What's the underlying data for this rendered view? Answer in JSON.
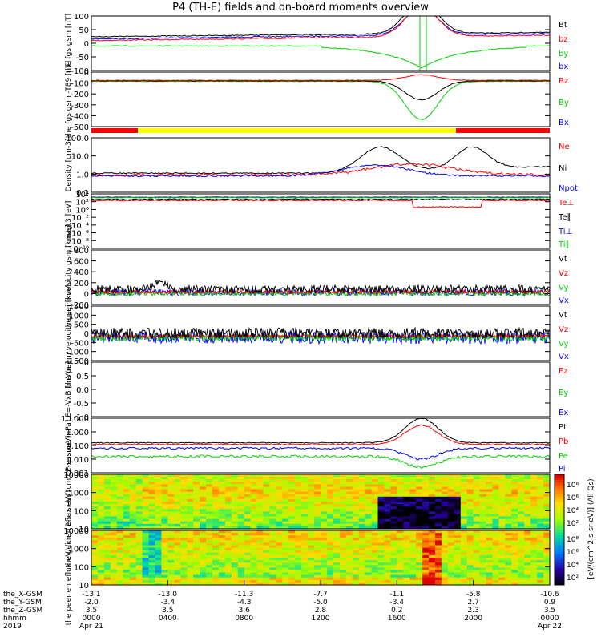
{
  "title": "P4 (TH-E) fields and on-board moments overview",
  "colors": {
    "black": "#000000",
    "red": "#ff0000",
    "green": "#00d000",
    "blue": "#0000ff",
    "yellow": "#ffff00",
    "orange": "#ff8c00"
  },
  "panels": [
    {
      "ylabel": "the fgs gsm [nT]",
      "ticks": [
        "100",
        "50",
        "0",
        "-50",
        "-100"
      ],
      "legend": [
        {
          "text": "Bt",
          "color": "black"
        },
        {
          "text": "bz",
          "color": "red"
        },
        {
          "text": "by",
          "color": "green"
        },
        {
          "text": "bx",
          "color": "blue"
        }
      ]
    },
    {
      "ylabel": "the fgs gsm -T89 [nT]",
      "ticks": [
        "0",
        "-100",
        "-200",
        "-300",
        "-400",
        "-500"
      ],
      "legend": [
        {
          "text": "Bz",
          "color": "red"
        },
        {
          "text": "By",
          "color": "green"
        },
        {
          "text": "Bx",
          "color": "blue"
        }
      ]
    },
    {
      "ylabel": "Density [cm-3]",
      "ticks": [
        "100.0",
        "10.0",
        "1.0",
        "0.1"
      ],
      "legend": [
        {
          "text": "Ne",
          "color": "red"
        },
        {
          "text": "Ni",
          "color": "black"
        },
        {
          "text": "Npot",
          "color": "blue"
        }
      ]
    },
    {
      "ylabel": "magt3 [eV]",
      "ticks": [
        "10⁴",
        "10²",
        "10⁰",
        "10⁻²",
        "10⁻⁴",
        "10⁻⁶",
        "10⁻⁸",
        "10⁻¹⁰"
      ],
      "legend": [
        {
          "text": "Te⊥",
          "color": "red"
        },
        {
          "text": "Te∥",
          "color": "black"
        },
        {
          "text": "Ti⊥",
          "color": "blue"
        },
        {
          "text": "Ti∥",
          "color": "green"
        }
      ]
    },
    {
      "ylabel": "the peim velocity gsm [km/s]",
      "ticks": [
        "800",
        "600",
        "400",
        "200",
        "0",
        "-200"
      ],
      "legend": [
        {
          "text": "Vt",
          "color": "black"
        },
        {
          "text": "Vz",
          "color": "red"
        },
        {
          "text": "Vy",
          "color": "green"
        },
        {
          "text": "Vx",
          "color": "blue"
        }
      ]
    },
    {
      "ylabel": "the peem velocity gsm [km/s]",
      "ticks": [
        "1500",
        "1000",
        "500",
        "0",
        "-500",
        "-1000",
        "-1500"
      ],
      "legend": [
        {
          "text": "Vt",
          "color": "black"
        },
        {
          "text": "Vz",
          "color": "red"
        },
        {
          "text": "Vy",
          "color": "green"
        },
        {
          "text": "Vx",
          "color": "blue"
        }
      ]
    },
    {
      "ylabel": "E=-VxB [mV/m]",
      "ticks": [
        "1.0",
        "0.5",
        "0.0",
        "-0.5",
        "-1.0"
      ],
      "legend": [
        {
          "text": "Ez",
          "color": "red"
        },
        {
          "text": "Ey",
          "color": "green"
        },
        {
          "text": "Ex",
          "color": "blue"
        }
      ]
    },
    {
      "ylabel": "Pressure [nPa]",
      "ticks": [
        "10.000",
        "1.000",
        "0.100",
        "0.010",
        "0.001"
      ],
      "legend": [
        {
          "text": "Pt",
          "color": "black"
        },
        {
          "text": "Pb",
          "color": "red"
        },
        {
          "text": "Pe",
          "color": "green"
        },
        {
          "text": "Pi",
          "color": "blue"
        }
      ]
    },
    {
      "ylabel": "the peir en eflux eV/ (cm^2-s- sr-eV)",
      "ticks": [
        "10000",
        "1000",
        "100",
        "10"
      ],
      "legend": []
    },
    {
      "ylabel": "the peer en eflux eV/ (cm^2-s- sr-eV)",
      "ticks": [
        "10000",
        "1000",
        "100",
        "10"
      ],
      "legend": []
    }
  ],
  "colorbar": {
    "label": "[eV/(cm^2-s-sr-eV)] (All Qs)",
    "ticks_top": [
      "10⁸",
      "10⁶",
      "10⁴",
      "10²"
    ],
    "ticks_bottom": [
      "10⁸",
      "10⁶",
      "10⁴",
      "10²"
    ]
  },
  "axis": {
    "rows": [
      {
        "name": "the_X-GSM",
        "values": [
          "-13.1",
          "-13.0",
          "-11.3",
          "-7.7",
          "-1.1",
          "-5.8",
          "-10.6"
        ]
      },
      {
        "name": "the_Y-GSM",
        "values": [
          "-2.0",
          "-3.4",
          "-4.3",
          "-5.0",
          "-3.4",
          "2.7",
          "0.9"
        ]
      },
      {
        "name": "the_Z-GSM",
        "values": [
          "3.5",
          "3.5",
          "3.6",
          "2.8",
          "0.2",
          "2.3",
          "3.5"
        ]
      },
      {
        "name": "hhmm",
        "values": [
          "0000",
          "0400",
          "0800",
          "1200",
          "1600",
          "2000",
          "0000"
        ]
      },
      {
        "name": "2019",
        "values": [
          "Apr 21",
          "",
          "",
          "",
          "",
          "",
          "Apr 22"
        ]
      }
    ]
  },
  "chart_data": {
    "type": "line",
    "title": "P4 (TH-E) fields and on-board moments overview",
    "x": [
      "0000",
      "0400",
      "0800",
      "1200",
      "1600",
      "2000",
      "0000"
    ],
    "xlabel": "hhmm",
    "series": [
      {
        "name": "Bt",
        "values": [
          28,
          32,
          35,
          40,
          100,
          45,
          40
        ]
      },
      {
        "name": "bz",
        "values": [
          20,
          25,
          30,
          35,
          100,
          25,
          30
        ]
      },
      {
        "name": "by",
        "values": [
          5,
          8,
          5,
          -5,
          -100,
          -10,
          5
        ]
      },
      {
        "name": "bx",
        "values": [
          22,
          28,
          30,
          38,
          100,
          40,
          35
        ]
      }
    ],
    "ylim": [
      -100,
      100
    ]
  }
}
